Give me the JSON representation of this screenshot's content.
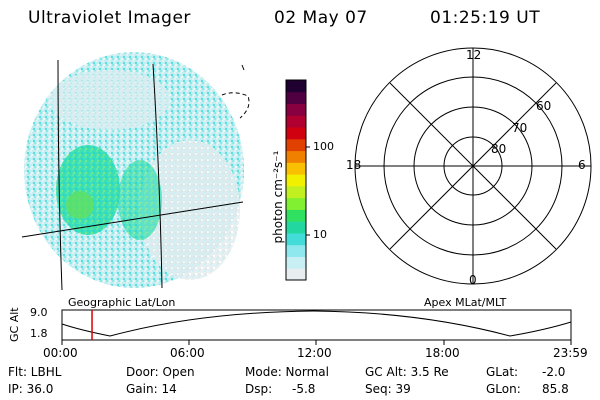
{
  "header": {
    "instrument": "Ultraviolet Imager",
    "date": "02 May 07",
    "time": "01:25:19 UT"
  },
  "colorbar": {
    "unit_label": "photon cm⁻²s⁻¹",
    "tick_100": "100",
    "tick_10": "10",
    "colors": [
      "#e8eef0",
      "#c8f0f4",
      "#8ee8ee",
      "#44dcd8",
      "#22d8a0",
      "#30e060",
      "#80f030",
      "#c0f020",
      "#f0f000",
      "#f8c000",
      "#f08000",
      "#e04000",
      "#d00010",
      "#b00030",
      "#880040",
      "#500040",
      "#200030"
    ]
  },
  "image_panel": {
    "left_label": "Geographic Lat/Lon",
    "right_label": "Apex  MLat/MLT"
  },
  "polar_plot": {
    "label_top": "12",
    "label_bottom": "0",
    "label_left": "18",
    "label_right": "6",
    "lat_60": "60",
    "lat_70": "70",
    "lat_80": "80"
  },
  "orbit_plot": {
    "y_label": "GC Alt",
    "y_max": "9.0",
    "y_min": "1.8",
    "x_ticks": [
      "00:00",
      "06:00",
      "12:00",
      "18:00",
      "23:59"
    ],
    "current_time_fraction": 0.059,
    "marker_color": "#dd0000"
  },
  "status": {
    "flt_label": "Flt: LBHL",
    "ip_label": "IP: 36.0",
    "door_label": "Door: Open",
    "gain_label": "Gain: 14",
    "mode_label": "Mode: Normal",
    "dsp_label": "Dsp:",
    "dsp_value": "-5.8",
    "gcalt_label": "GC Alt: 3.5 Re",
    "seq_label": "Seq: 39",
    "glat_label": "GLat:",
    "glat_value": "-2.0",
    "glon_label": "GLon:",
    "glon_value": "85.8"
  }
}
